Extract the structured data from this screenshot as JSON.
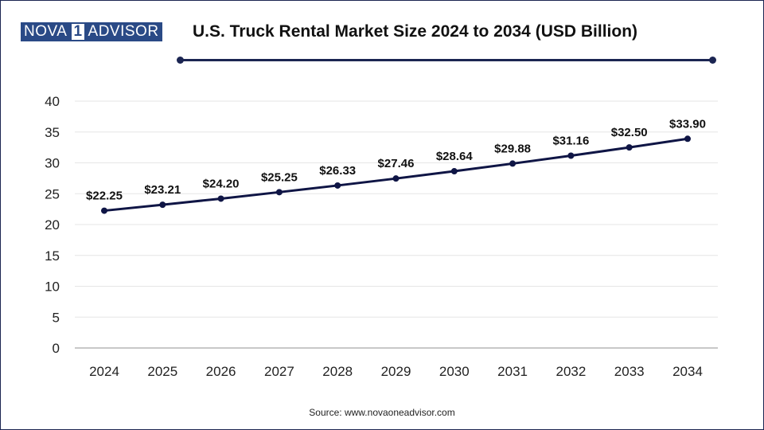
{
  "header": {
    "logo_left": "NOVA",
    "logo_mark": "1",
    "logo_right": "ADVISOR",
    "title": "U.S. Truck Rental Market Size 2024 to 2034 (USD Billion)"
  },
  "footer": {
    "source": "Source: www.novaoneadvisor.com"
  },
  "colors": {
    "line": "#0f1545",
    "accent": "#1b2552",
    "logo": "#2a4a86",
    "grid": "#e6e6e6"
  },
  "chart_data": {
    "type": "line",
    "title": "U.S. Truck Rental Market Size 2024 to 2034 (USD Billion)",
    "xlabel": "",
    "ylabel": "",
    "categories": [
      "2024",
      "2025",
      "2026",
      "2027",
      "2028",
      "2029",
      "2030",
      "2031",
      "2032",
      "2033",
      "2034"
    ],
    "series": [
      {
        "values": [
          22.25,
          23.21,
          24.2,
          25.25,
          26.33,
          27.46,
          28.64,
          29.88,
          31.16,
          32.5,
          33.9
        ],
        "labels": [
          "$22.25",
          "$23.21",
          "$24.20",
          "$25.25",
          "$26.33",
          "$27.46",
          "$28.64",
          "$29.88",
          "$31.16",
          "$32.50",
          "$33.90"
        ]
      }
    ],
    "ylim": [
      0,
      40
    ],
    "yticks": [
      0,
      5,
      10,
      15,
      20,
      25,
      30,
      35,
      40
    ],
    "grid": true,
    "legend": "none"
  }
}
